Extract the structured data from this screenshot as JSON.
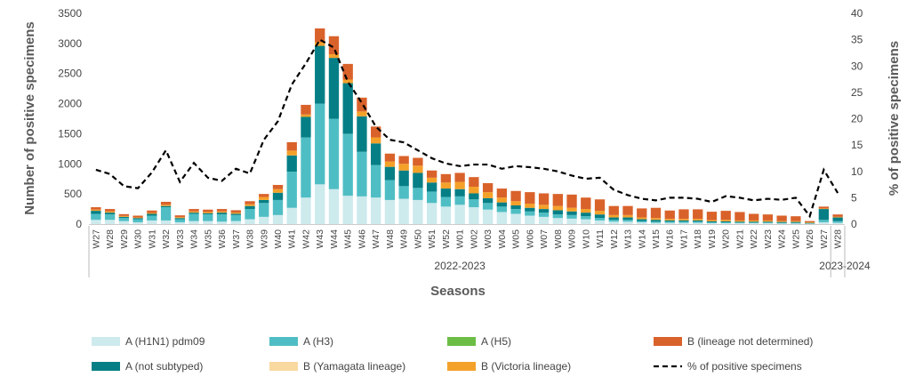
{
  "chart_data": {
    "type": "bar",
    "xlabel": "Seasons",
    "ylabel": "Number of positive specimens",
    "y2label": "% of positive specimens",
    "ylim": [
      0,
      3500
    ],
    "y2lim": [
      0,
      40
    ],
    "yticks": [
      0,
      500,
      1000,
      1500,
      2000,
      2500,
      3000,
      3500
    ],
    "y2ticks": [
      0,
      5,
      10,
      15,
      20,
      25,
      30,
      35,
      40
    ],
    "seasons": [
      {
        "label": "2022-2023",
        "start": 0,
        "end": 52
      },
      {
        "label": "2023-2024",
        "start": 53,
        "end": 54
      }
    ],
    "categories": [
      "W27",
      "W28",
      "W29",
      "W30",
      "W31",
      "W32",
      "W33",
      "W34",
      "W35",
      "W36",
      "W37",
      "W38",
      "W39",
      "W40",
      "W41",
      "W42",
      "W43",
      "W44",
      "W45",
      "W46",
      "W47",
      "W48",
      "W49",
      "W50",
      "W51",
      "W52",
      "W01",
      "W02",
      "W03",
      "W04",
      "W05",
      "W06",
      "W07",
      "W08",
      "W09",
      "W10",
      "W11",
      "W12",
      "W13",
      "W14",
      "W15",
      "W16",
      "W17",
      "W18",
      "W19",
      "W20",
      "W21",
      "W22",
      "W23",
      "W24",
      "W25",
      "W26",
      "W27",
      "W28"
    ],
    "series": [
      {
        "name": "A (H1N1) pdm09",
        "color": "#cdeaed",
        "values": [
          70,
          70,
          50,
          30,
          60,
          60,
          30,
          50,
          50,
          40,
          50,
          80,
          120,
          150,
          270,
          440,
          660,
          580,
          470,
          460,
          440,
          400,
          420,
          400,
          350,
          290,
          320,
          280,
          240,
          200,
          170,
          140,
          120,
          100,
          90,
          80,
          60,
          40,
          40,
          30,
          20,
          20,
          20,
          20,
          15,
          15,
          15,
          15,
          15,
          10,
          10,
          5,
          30,
          20
        ]
      },
      {
        "name": "A (H3)",
        "color": "#4fbec4",
        "values": [
          100,
          90,
          50,
          50,
          80,
          220,
          50,
          120,
          110,
          120,
          100,
          170,
          230,
          250,
          600,
          1000,
          1340,
          1170,
          1030,
          740,
          540,
          330,
          210,
          200,
          190,
          160,
          140,
          130,
          110,
          90,
          80,
          70,
          70,
          60,
          60,
          50,
          40,
          30,
          30,
          20,
          20,
          20,
          20,
          20,
          15,
          15,
          10,
          10,
          10,
          10,
          10,
          5,
          40,
          30
        ]
      },
      {
        "name": "A (H5)",
        "color": "#6cbd45",
        "values": [
          0,
          0,
          0,
          0,
          0,
          0,
          0,
          0,
          0,
          0,
          0,
          0,
          0,
          0,
          0,
          0,
          0,
          0,
          0,
          0,
          0,
          0,
          0,
          0,
          0,
          0,
          0,
          0,
          0,
          0,
          0,
          0,
          0,
          0,
          0,
          0,
          0,
          0,
          0,
          0,
          0,
          0,
          0,
          0,
          0,
          0,
          0,
          0,
          0,
          0,
          0,
          0,
          0,
          0
        ]
      },
      {
        "name": "A (not subtyped)",
        "color": "#057f85",
        "values": [
          50,
          30,
          20,
          20,
          30,
          20,
          20,
          20,
          20,
          30,
          20,
          50,
          50,
          120,
          270,
          340,
          960,
          1010,
          840,
          590,
          360,
          220,
          260,
          250,
          150,
          140,
          120,
          100,
          80,
          70,
          60,
          60,
          60,
          70,
          60,
          60,
          60,
          40,
          40,
          30,
          30,
          20,
          20,
          20,
          15,
          15,
          15,
          15,
          15,
          15,
          15,
          10,
          180,
          60
        ]
      },
      {
        "name": "B (Yamagata lineage)",
        "color": "#f9d9a0",
        "values": [
          0,
          0,
          0,
          0,
          0,
          0,
          0,
          0,
          0,
          0,
          0,
          0,
          0,
          0,
          0,
          0,
          0,
          0,
          0,
          0,
          0,
          0,
          0,
          0,
          0,
          0,
          0,
          0,
          0,
          0,
          0,
          0,
          0,
          0,
          0,
          0,
          0,
          0,
          0,
          0,
          0,
          0,
          0,
          0,
          0,
          0,
          0,
          0,
          0,
          0,
          0,
          0,
          0,
          0
        ]
      },
      {
        "name": "B (Victoria lineage)",
        "color": "#f4a12a",
        "values": [
          20,
          20,
          15,
          10,
          15,
          20,
          15,
          20,
          20,
          20,
          20,
          30,
          50,
          60,
          80,
          40,
          60,
          60,
          60,
          80,
          100,
          90,
          110,
          120,
          80,
          100,
          120,
          110,
          100,
          80,
          70,
          70,
          70,
          70,
          60,
          60,
          60,
          40,
          40,
          30,
          30,
          25,
          25,
          25,
          20,
          25,
          20,
          20,
          20,
          15,
          15,
          10,
          10,
          10
        ]
      },
      {
        "name": "B (lineage not determined)",
        "color": "#d9622b",
        "values": [
          40,
          40,
          30,
          30,
          40,
          50,
          30,
          40,
          40,
          40,
          40,
          50,
          50,
          70,
          140,
          160,
          230,
          300,
          260,
          230,
          180,
          130,
          130,
          130,
          120,
          140,
          150,
          160,
          150,
          150,
          170,
          190,
          190,
          200,
          220,
          190,
          190,
          150,
          150,
          150,
          170,
          140,
          160,
          160,
          140,
          150,
          140,
          110,
          100,
          90,
          80,
          20,
          30,
          40
        ]
      }
    ],
    "line": {
      "name": "% of positive specimens",
      "axis": "right",
      "style": "dashed",
      "color": "#000000",
      "values": [
        10.3,
        9.5,
        7.2,
        6.8,
        9.8,
        14.0,
        8.0,
        11.6,
        8.8,
        8.2,
        10.5,
        9.6,
        16.0,
        19.5,
        26.5,
        30.5,
        35.0,
        33.5,
        27.0,
        23.0,
        18.5,
        16.0,
        15.5,
        14.0,
        12.5,
        11.5,
        11.0,
        11.3,
        11.3,
        10.5,
        11.0,
        10.8,
        10.5,
        10.0,
        9.2,
        8.6,
        8.8,
        6.5,
        5.5,
        4.8,
        4.5,
        5.0,
        5.0,
        4.8,
        4.2,
        5.3,
        5.0,
        4.5,
        4.8,
        4.6,
        5.0,
        1.5,
        10.3,
        5.9
      ]
    },
    "legend_position": "bottom",
    "legend_order": [
      "A (H1N1) pdm09",
      "A (H3)",
      "A (H5)",
      "B (lineage not determined)",
      "A (not subtyped)",
      "B (Yamagata lineage)",
      "B (Victoria lineage)",
      "% of positive specimens"
    ],
    "grid": false
  }
}
